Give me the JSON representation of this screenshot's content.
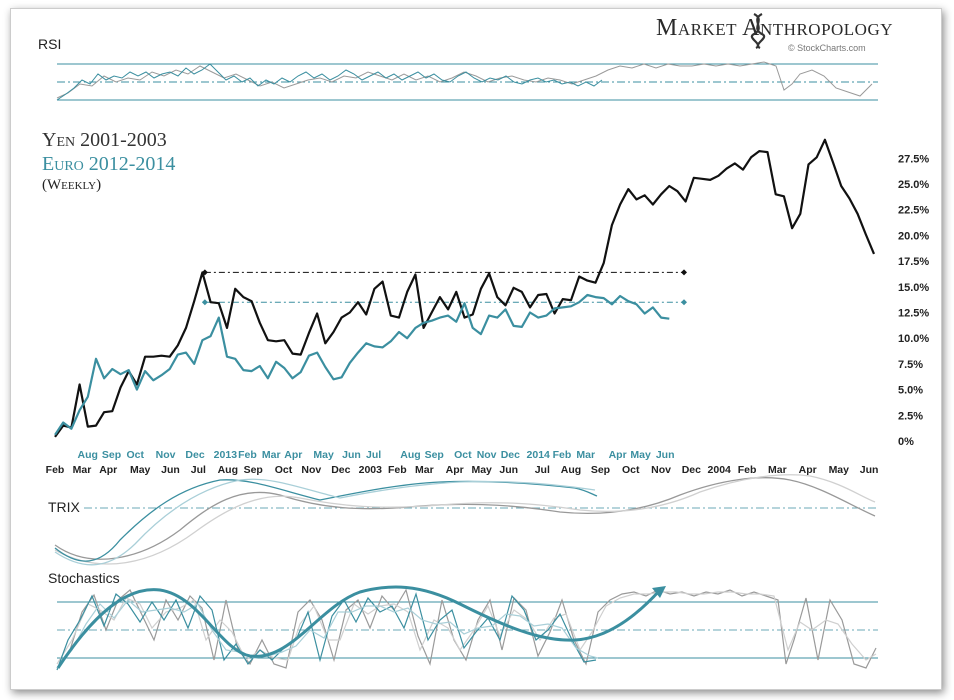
{
  "brand": {
    "name": "Market Anthropology",
    "source": "© StockCharts.com"
  },
  "panels": {
    "rsi": "RSI",
    "trix": "TRIX",
    "stochastics": "Stochastics"
  },
  "colors": {
    "yen": "#111111",
    "euro": "#3b8fa0",
    "gray": "#999999",
    "light_gray": "#cccccc",
    "blue_light": "#a9cfd8"
  },
  "chart_data": {
    "type": "line",
    "title_lines": [
      "Yen 2001-2003",
      "Euro 2012-2014",
      "(Weekly)"
    ],
    "y_ticks": [
      "0%",
      "2.5%",
      "5.0%",
      "7.5%",
      "10.0%",
      "12.5%",
      "15.0%",
      "17.5%",
      "20.0%",
      "22.5%",
      "25.0%",
      "27.5%"
    ],
    "ylim": [
      0,
      28.5
    ],
    "xlim": [
      0,
      100
    ],
    "x_labels_euro": [
      {
        "x": 4.0,
        "t": "Aug"
      },
      {
        "x": 6.9,
        "t": "Sep"
      },
      {
        "x": 9.8,
        "t": "Oct"
      },
      {
        "x": 13.5,
        "t": "Nov"
      },
      {
        "x": 17.1,
        "t": "Dec"
      },
      {
        "x": 20.8,
        "t": "2013"
      },
      {
        "x": 23.5,
        "t": "Feb"
      },
      {
        "x": 26.4,
        "t": "Mar"
      },
      {
        "x": 29.1,
        "t": "Apr"
      },
      {
        "x": 32.8,
        "t": "May"
      },
      {
        "x": 36.2,
        "t": "Jun"
      },
      {
        "x": 38.9,
        "t": "Jul"
      },
      {
        "x": 43.4,
        "t": "Aug"
      },
      {
        "x": 46.3,
        "t": "Sep"
      },
      {
        "x": 49.8,
        "t": "Oct"
      },
      {
        "x": 52.7,
        "t": "Nov"
      },
      {
        "x": 55.6,
        "t": "Dec"
      },
      {
        "x": 59.0,
        "t": "2014"
      },
      {
        "x": 61.9,
        "t": "Feb"
      },
      {
        "x": 64.8,
        "t": "Mar"
      },
      {
        "x": 68.7,
        "t": "Apr"
      },
      {
        "x": 71.5,
        "t": "May"
      },
      {
        "x": 74.5,
        "t": "Jun"
      }
    ],
    "x_labels_yen": [
      {
        "x": 0.0,
        "t": "Feb"
      },
      {
        "x": 3.3,
        "t": "Mar"
      },
      {
        "x": 6.5,
        "t": "Apr"
      },
      {
        "x": 10.4,
        "t": "May"
      },
      {
        "x": 14.1,
        "t": "Jun"
      },
      {
        "x": 17.5,
        "t": "Jul"
      },
      {
        "x": 21.1,
        "t": "Aug"
      },
      {
        "x": 24.2,
        "t": "Sep"
      },
      {
        "x": 27.9,
        "t": "Oct"
      },
      {
        "x": 31.3,
        "t": "Nov"
      },
      {
        "x": 34.9,
        "t": "Dec"
      },
      {
        "x": 38.5,
        "t": "2003"
      },
      {
        "x": 41.8,
        "t": "Feb"
      },
      {
        "x": 45.1,
        "t": "Mar"
      },
      {
        "x": 48.8,
        "t": "Apr"
      },
      {
        "x": 52.1,
        "t": "May"
      },
      {
        "x": 55.4,
        "t": "Jun"
      },
      {
        "x": 59.5,
        "t": "Jul"
      },
      {
        "x": 63.0,
        "t": "Aug"
      },
      {
        "x": 66.6,
        "t": "Sep"
      },
      {
        "x": 70.3,
        "t": "Oct"
      },
      {
        "x": 74.0,
        "t": "Nov"
      },
      {
        "x": 77.7,
        "t": "Dec"
      },
      {
        "x": 81.1,
        "t": "2004"
      },
      {
        "x": 84.5,
        "t": "Feb"
      },
      {
        "x": 88.2,
        "t": "Mar"
      },
      {
        "x": 91.9,
        "t": "Apr"
      },
      {
        "x": 95.7,
        "t": "May"
      },
      {
        "x": 99.4,
        "t": "Jun"
      }
    ],
    "series": [
      {
        "name": "Yen 2001-2003",
        "x": [
          0,
          1,
          2,
          3,
          4,
          5,
          6,
          7,
          8,
          9,
          10,
          11,
          12,
          13,
          14,
          15,
          16,
          17,
          18,
          19,
          20,
          21,
          22,
          23,
          24,
          25,
          26,
          27,
          28,
          29,
          30,
          31,
          32,
          33,
          34,
          35,
          36,
          37,
          38,
          39,
          40,
          41,
          42,
          43,
          44,
          45,
          46,
          47,
          48,
          49,
          50,
          51,
          52,
          53,
          54,
          55,
          56,
          57,
          58,
          59,
          60,
          61,
          62,
          63,
          64,
          65,
          66,
          67,
          68,
          69,
          70,
          71,
          72,
          73,
          74,
          75,
          76,
          77,
          78,
          79,
          80,
          81,
          82,
          83,
          84,
          85,
          86,
          87,
          88,
          89,
          90,
          91,
          92,
          93,
          94,
          95,
          96,
          97,
          98,
          99,
          100
        ],
        "values": [
          0.4,
          1.5,
          1.3,
          5.5,
          1.4,
          1.5,
          2.8,
          2.9,
          5.2,
          6.8,
          5.5,
          8.2,
          8.2,
          8.3,
          8.2,
          9.3,
          11.0,
          13.6,
          16.4,
          13.5,
          13.4,
          11.0,
          14.8,
          14.0,
          13.6,
          11.5,
          9.8,
          9.7,
          9.8,
          8.5,
          8.4,
          10.5,
          12.4,
          9.5,
          10.6,
          12.0,
          12.5,
          13.5,
          12.3,
          14.8,
          15.5,
          12.2,
          12.0,
          14.5,
          16.2,
          11.0,
          12.5,
          14.0,
          12.8,
          14.5,
          12.0,
          12.3,
          14.8,
          16.3,
          14.0,
          13.2,
          14.9,
          14.5,
          13.0,
          14.2,
          14.3,
          12.4,
          13.8,
          13.7,
          16.0,
          15.6,
          15.4,
          17.3,
          21.0,
          23.0,
          24.5,
          23.5,
          23.9,
          23.0,
          24.0,
          24.8,
          24.3,
          23.3,
          25.6,
          25.5,
          25.4,
          25.8,
          26.5,
          27.0,
          26.4,
          27.6,
          28.2,
          28.1,
          24.0,
          23.8,
          20.7,
          22.1,
          26.9,
          27.6,
          29.3,
          27.1,
          24.8,
          23.6,
          22.1,
          20.1,
          18.2
        ]
      },
      {
        "name": "Euro 2012-2014",
        "x": [
          0,
          1,
          2,
          3,
          4,
          5,
          6,
          7,
          8,
          9,
          10,
          11,
          12,
          13,
          14,
          15,
          16,
          17,
          18,
          19,
          20,
          21,
          22,
          23,
          24,
          25,
          26,
          27,
          28,
          29,
          30,
          31,
          32,
          33,
          34,
          35,
          36,
          37,
          38,
          39,
          40,
          41,
          42,
          43,
          44,
          45,
          46,
          47,
          48,
          49,
          50,
          51,
          52,
          53,
          54,
          55,
          56,
          57,
          58,
          59,
          60,
          61,
          62,
          63,
          64,
          65,
          66,
          67,
          68,
          69,
          70,
          71,
          72,
          73,
          74,
          75
        ],
        "values": [
          0.6,
          1.8,
          1.2,
          3.0,
          4.3,
          8.0,
          6.1,
          7.0,
          6.5,
          6.9,
          5.0,
          6.8,
          5.9,
          6.4,
          7.0,
          8.4,
          8.6,
          7.5,
          9.8,
          10.2,
          12.0,
          8.2,
          8.0,
          6.9,
          6.8,
          7.3,
          6.1,
          7.7,
          7.1,
          6.1,
          6.7,
          8.3,
          8.6,
          7.2,
          6.0,
          6.2,
          7.6,
          8.6,
          9.5,
          9.2,
          9.1,
          9.7,
          10.6,
          10.0,
          11.0,
          11.5,
          11.7,
          12.0,
          12.2,
          11.6,
          13.4,
          11.0,
          10.4,
          12.2,
          12.0,
          12.8,
          11.2,
          11.1,
          12.5,
          12.0,
          12.2,
          12.9,
          13.0,
          13.1,
          13.5,
          14.2,
          14.0,
          13.9,
          13.3,
          14.1,
          13.6,
          13.3,
          12.4,
          13.0,
          12.0,
          11.9
        ]
      }
    ],
    "resistance_levels": [
      16.4,
      13.5
    ],
    "y_right_axis": true
  }
}
